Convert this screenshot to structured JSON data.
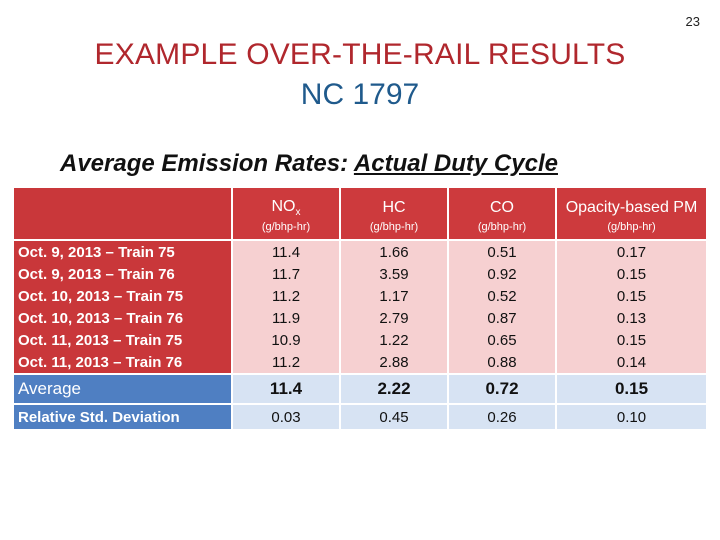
{
  "slide": {
    "number": "23",
    "title_line1": "EXAMPLE OVER-THE-RAIL RESULTS",
    "title_line2": "NC 1797",
    "subtitle_prefix": "Average Emission Rates:",
    "subtitle_underlined": "Actual Duty Cycle"
  },
  "table": {
    "columns": [
      {
        "name": "NO",
        "sub": "x",
        "unit": "(g/bhp-hr)"
      },
      {
        "name": "HC",
        "sub": "",
        "unit": "(g/bhp-hr)"
      },
      {
        "name": "CO",
        "sub": "",
        "unit": "(g/bhp-hr)"
      },
      {
        "name": "Opacity-based PM",
        "sub": "",
        "unit": "(g/bhp-hr)"
      }
    ],
    "rows": [
      {
        "label": "Oct. 9, 2013 – Train 75",
        "values": [
          "11.4",
          "1.66",
          "0.51",
          "0.17"
        ]
      },
      {
        "label": "Oct. 9, 2013 – Train 76",
        "values": [
          "11.7",
          "3.59",
          "0.92",
          "0.15"
        ]
      },
      {
        "label": "Oct. 10, 2013 – Train 75",
        "values": [
          "11.2",
          "1.17",
          "0.52",
          "0.15"
        ]
      },
      {
        "label": "Oct. 10, 2013 – Train 76",
        "values": [
          "11.9",
          "2.79",
          "0.87",
          "0.13"
        ]
      },
      {
        "label": "Oct. 11, 2013 – Train 75",
        "values": [
          "10.9",
          "1.22",
          "0.65",
          "0.15"
        ]
      },
      {
        "label": "Oct. 11, 2013 – Train 76",
        "values": [
          "11.2",
          "2.88",
          "0.88",
          "0.14"
        ]
      }
    ],
    "average": {
      "label": "Average",
      "values": [
        "11.4",
        "2.22",
        "0.72",
        "0.15"
      ]
    },
    "rsd": {
      "label": "Relative Std. Deviation",
      "values": [
        "0.03",
        "0.45",
        "0.26",
        "0.10"
      ]
    }
  },
  "colors": {
    "title_red": "#b0272d",
    "title_blue": "#1f5a8c",
    "header_red": "#cd3a3d",
    "row_pink": "#f6d0d1",
    "avg_blue": "#4f7fc2",
    "avg_light": "#d7e3f3"
  }
}
